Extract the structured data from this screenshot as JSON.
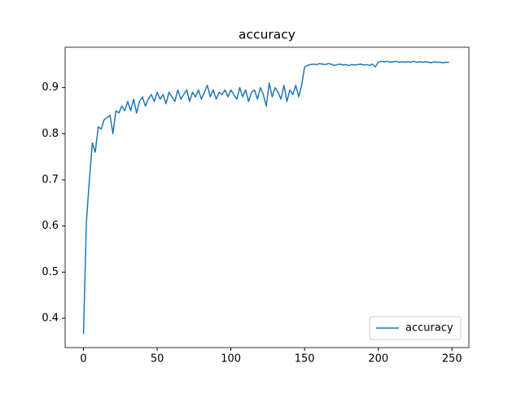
{
  "chart_data": {
    "type": "line",
    "title": "accuracy",
    "x": [
      0,
      2,
      4,
      6,
      8,
      10,
      12,
      14,
      16,
      18,
      20,
      22,
      24,
      26,
      28,
      30,
      32,
      34,
      36,
      38,
      40,
      42,
      44,
      46,
      48,
      50,
      52,
      54,
      56,
      58,
      60,
      62,
      64,
      66,
      68,
      70,
      72,
      74,
      76,
      78,
      80,
      82,
      84,
      86,
      88,
      90,
      92,
      94,
      96,
      98,
      100,
      102,
      104,
      106,
      108,
      110,
      112,
      114,
      116,
      118,
      120,
      122,
      124,
      126,
      128,
      130,
      132,
      134,
      136,
      138,
      140,
      142,
      144,
      146,
      148,
      150,
      152,
      154,
      156,
      158,
      160,
      162,
      164,
      166,
      168,
      170,
      172,
      174,
      176,
      178,
      180,
      182,
      184,
      186,
      188,
      190,
      192,
      194,
      196,
      198,
      200,
      202,
      204,
      206,
      208,
      210,
      212,
      214,
      216,
      218,
      220,
      222,
      224,
      226,
      228,
      230,
      232,
      234,
      236,
      238,
      240,
      242,
      244,
      246,
      248
    ],
    "series": [
      {
        "name": "accuracy",
        "color": "#1f77b4",
        "values": [
          0.366,
          0.61,
          0.7,
          0.78,
          0.76,
          0.815,
          0.81,
          0.83,
          0.835,
          0.84,
          0.8,
          0.85,
          0.845,
          0.86,
          0.85,
          0.87,
          0.85,
          0.875,
          0.845,
          0.87,
          0.88,
          0.86,
          0.875,
          0.885,
          0.87,
          0.89,
          0.875,
          0.885,
          0.865,
          0.89,
          0.88,
          0.87,
          0.895,
          0.875,
          0.885,
          0.895,
          0.87,
          0.89,
          0.88,
          0.895,
          0.875,
          0.89,
          0.905,
          0.88,
          0.895,
          0.875,
          0.89,
          0.885,
          0.895,
          0.88,
          0.895,
          0.885,
          0.875,
          0.9,
          0.88,
          0.895,
          0.87,
          0.89,
          0.895,
          0.875,
          0.9,
          0.885,
          0.86,
          0.91,
          0.88,
          0.9,
          0.89,
          0.875,
          0.905,
          0.87,
          0.895,
          0.885,
          0.905,
          0.88,
          0.905,
          0.945,
          0.948,
          0.95,
          0.951,
          0.95,
          0.952,
          0.951,
          0.95,
          0.952,
          0.951,
          0.948,
          0.95,
          0.951,
          0.949,
          0.95,
          0.948,
          0.95,
          0.949,
          0.95,
          0.951,
          0.949,
          0.95,
          0.948,
          0.951,
          0.945,
          0.955,
          0.957,
          0.956,
          0.957,
          0.955,
          0.956,
          0.957,
          0.955,
          0.956,
          0.955,
          0.956,
          0.955,
          0.957,
          0.955,
          0.956,
          0.955,
          0.956,
          0.955,
          0.954,
          0.956,
          0.955,
          0.955,
          0.954,
          0.955,
          0.955
        ]
      }
    ],
    "xlim": [
      -12.45,
      261.45
    ],
    "xticks": [
      0,
      50,
      100,
      150,
      200,
      250
    ],
    "ylim": [
      0.3364,
      0.9876
    ],
    "yticks": [
      0.4,
      0.5,
      0.6,
      0.7,
      0.8,
      0.9
    ],
    "legend": "lower right"
  }
}
